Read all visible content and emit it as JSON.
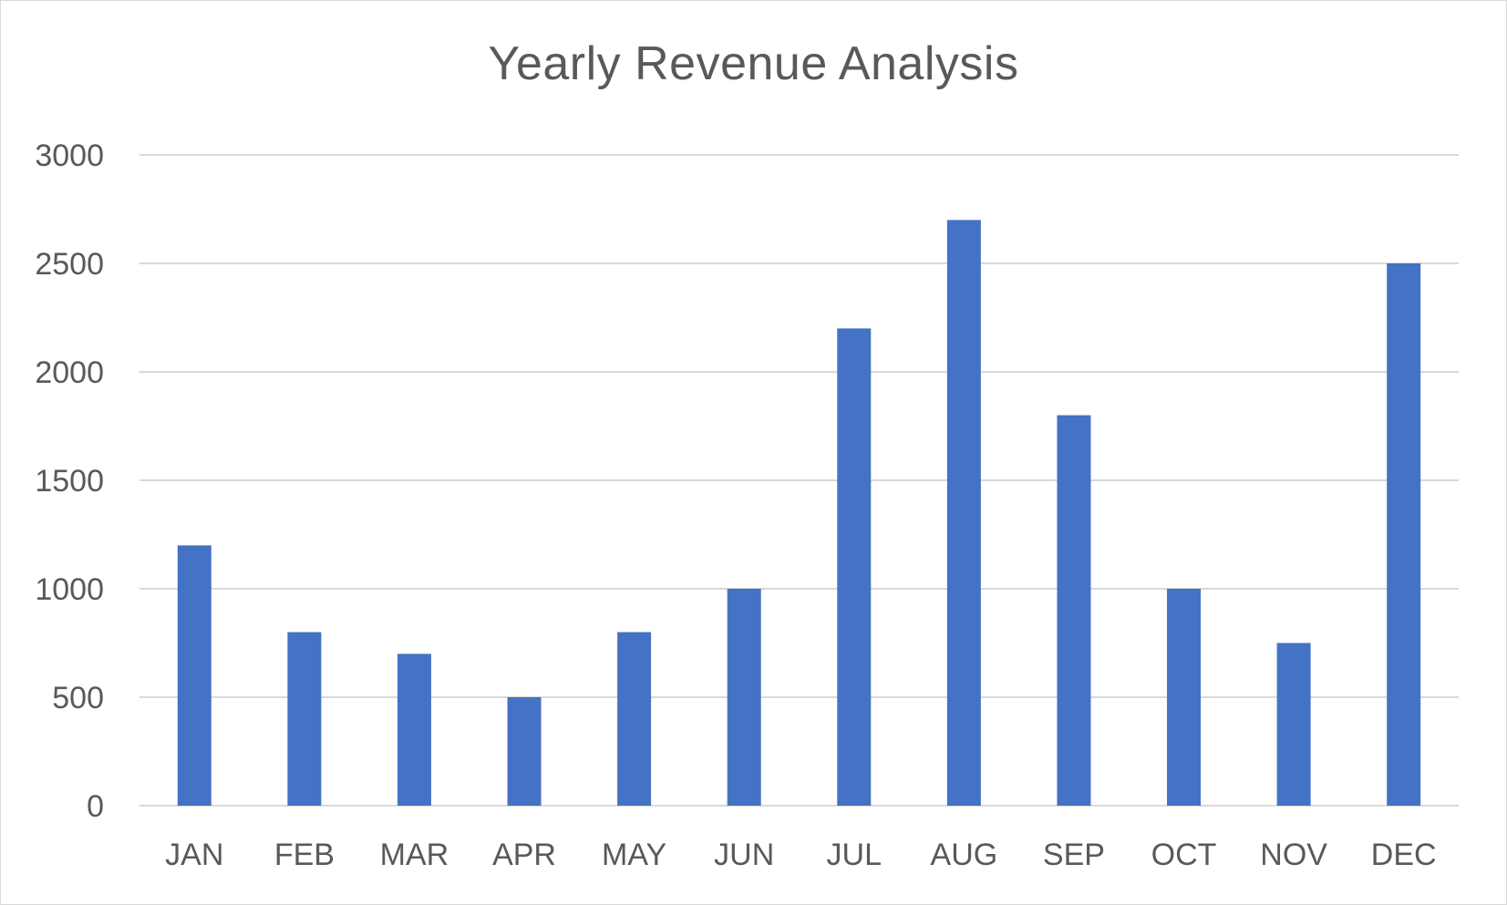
{
  "chart_data": {
    "type": "bar",
    "title": "Yearly Revenue Analysis",
    "categories": [
      "JAN",
      "FEB",
      "MAR",
      "APR",
      "MAY",
      "JUN",
      "JUL",
      "AUG",
      "SEP",
      "OCT",
      "NOV",
      "DEC"
    ],
    "values": [
      1200,
      800,
      700,
      500,
      800,
      1000,
      2200,
      2700,
      1800,
      1000,
      750,
      2500
    ],
    "y_ticks": [
      "0",
      "500",
      "1000",
      "1500",
      "2000",
      "2500",
      "3000"
    ],
    "ylim": [
      0,
      3000
    ],
    "grid": true,
    "legend": "none",
    "bar_color": "#4472C4",
    "grid_color": "#D9D9D9",
    "text_color": "#595959"
  }
}
